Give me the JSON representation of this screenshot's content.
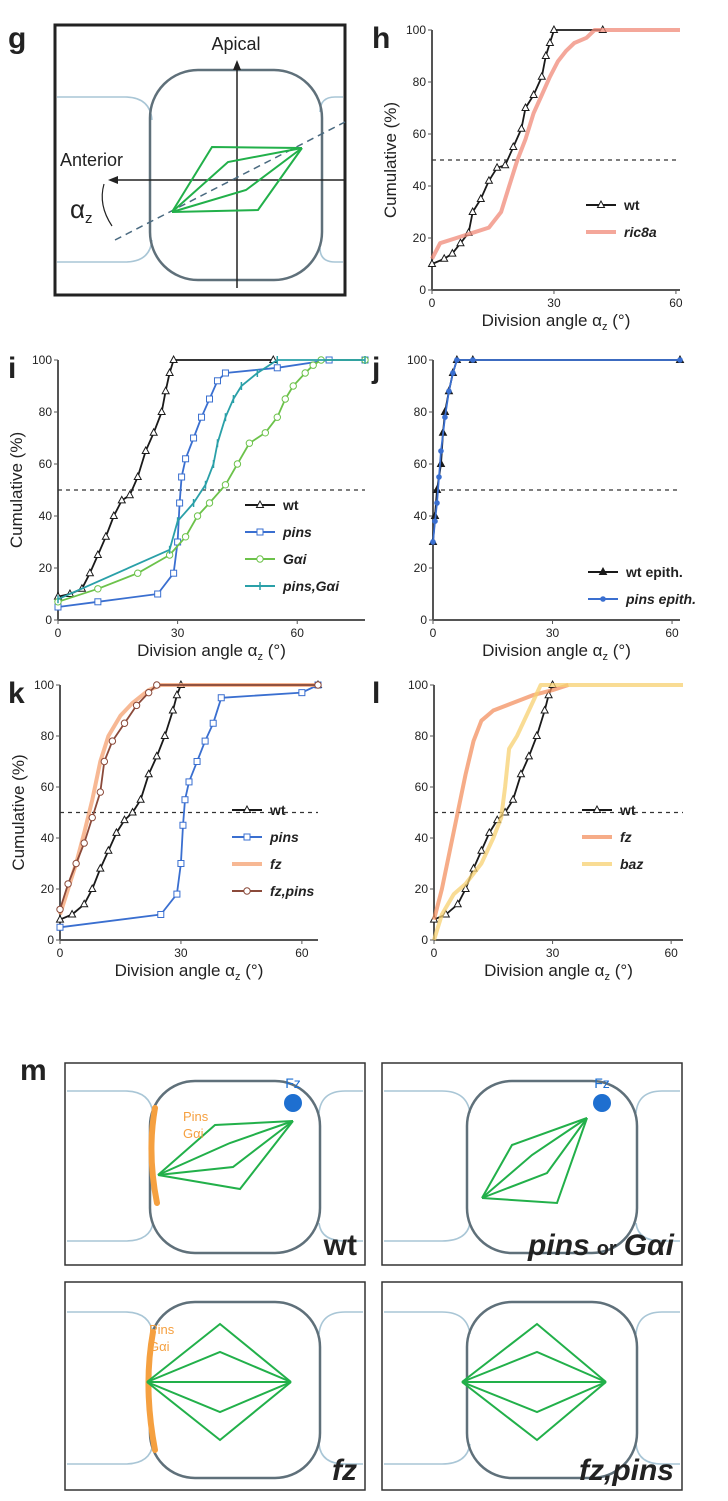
{
  "panel_g": {
    "label": "g",
    "apical": "Apical",
    "anterior": "Anterior",
    "angle": [
      "α",
      "z"
    ]
  },
  "chart_data": [
    {
      "type": "line",
      "panel_label": "h",
      "ylabel": "Cumulative (%)",
      "xlabel": [
        "Division angle α",
        "z",
        " (°)"
      ],
      "xlim": [
        0,
        61
      ],
      "ylim": [
        0,
        100
      ],
      "xticks": [
        0,
        30,
        60
      ],
      "yticks": [
        0,
        20,
        40,
        60,
        80,
        100
      ],
      "hline": 50,
      "series": [
        {
          "name": "wt",
          "color": "#1a1a1a",
          "marker": "triangle",
          "x": [
            0,
            3,
            5,
            7,
            9,
            10,
            12,
            14,
            16,
            18,
            20,
            22,
            23,
            25,
            27,
            28,
            29,
            30,
            42
          ],
          "values": [
            10,
            12,
            14,
            18,
            22,
            30,
            35,
            42,
            47,
            48,
            55,
            62,
            70,
            75,
            82,
            90,
            95,
            100,
            100
          ]
        },
        {
          "name": "ric8a",
          "color": "#f08a78",
          "marker": "none",
          "x": [
            0,
            2,
            6,
            10,
            14,
            17,
            19,
            21,
            23,
            25,
            27,
            29,
            31,
            33,
            35,
            38,
            40,
            61
          ],
          "values": [
            12,
            18,
            20,
            22,
            24,
            30,
            40,
            50,
            58,
            68,
            75,
            82,
            88,
            92,
            95,
            97,
            100,
            100
          ]
        }
      ]
    },
    {
      "type": "line",
      "panel_label": "i",
      "ylabel": "Cumulative (%)",
      "xlabel": [
        "Division angle α",
        "z",
        " (°)"
      ],
      "xlim": [
        0,
        77
      ],
      "ylim": [
        0,
        100
      ],
      "xticks": [
        0,
        30,
        60
      ],
      "yticks": [
        0,
        20,
        40,
        60,
        80,
        100
      ],
      "hline": 50,
      "series": [
        {
          "name": "wt",
          "color": "#1a1a1a",
          "marker": "triangle",
          "x": [
            0,
            3,
            6,
            8,
            10,
            12,
            14,
            16,
            18,
            20,
            22,
            24,
            26,
            27,
            28,
            29,
            54
          ],
          "values": [
            9,
            10,
            12,
            18,
            25,
            32,
            40,
            46,
            48,
            55,
            65,
            72,
            80,
            88,
            95,
            100,
            100
          ]
        },
        {
          "name": "pins",
          "color": "#3a6fd0",
          "marker": "square",
          "x": [
            0,
            10,
            25,
            29,
            30,
            30.5,
            31,
            32,
            34,
            36,
            38,
            40,
            42,
            55,
            68,
            77
          ],
          "values": [
            5,
            7,
            10,
            18,
            30,
            45,
            55,
            62,
            70,
            78,
            85,
            92,
            95,
            97,
            100,
            100
          ]
        },
        {
          "name": "Gαi",
          "color": "#6cc24a",
          "marker": "circle",
          "x": [
            0,
            10,
            20,
            28,
            32,
            35,
            38,
            42,
            45,
            48,
            52,
            55,
            57,
            59,
            62,
            64,
            66,
            77
          ],
          "values": [
            7,
            12,
            18,
            25,
            32,
            40,
            45,
            52,
            60,
            68,
            72,
            78,
            85,
            90,
            95,
            98,
            100,
            100
          ]
        },
        {
          "name": "pins,Gαi",
          "color": "#2aa0a8",
          "marker": "tick",
          "x": [
            0,
            28,
            30,
            34,
            37,
            39,
            40,
            42,
            44,
            46,
            50,
            55,
            77
          ],
          "values": [
            8,
            27,
            38,
            45,
            52,
            60,
            68,
            78,
            85,
            90,
            95,
            100,
            100
          ]
        }
      ]
    },
    {
      "type": "line",
      "panel_label": "j",
      "xlabel": [
        "Division angle α",
        "z",
        " (°)"
      ],
      "xlim": [
        0,
        62
      ],
      "ylim": [
        0,
        100
      ],
      "xticks": [
        0,
        30,
        60
      ],
      "yticks": [
        0,
        20,
        40,
        60,
        80,
        100
      ],
      "hline": 50,
      "series": [
        {
          "name": "wt epith.",
          "color": "#1a1a1a",
          "marker": "filled-triangle",
          "x": [
            0,
            0.5,
            1,
            2,
            2.5,
            3,
            4,
            5,
            6,
            10,
            62
          ],
          "values": [
            30,
            40,
            50,
            60,
            72,
            80,
            88,
            95,
            100,
            100,
            100
          ]
        },
        {
          "name": "pins epith.",
          "color": "#3a6fd0",
          "marker": "dot",
          "x": [
            0,
            0.5,
            1,
            1.5,
            2,
            3,
            4,
            5,
            6,
            10,
            62
          ],
          "values": [
            30,
            38,
            45,
            55,
            65,
            78,
            88,
            95,
            100,
            100,
            100
          ]
        }
      ]
    },
    {
      "type": "line",
      "panel_label": "k",
      "ylabel": "Cumulative (%)",
      "xlabel": [
        "Division angle α",
        "z",
        " (°)"
      ],
      "xlim": [
        0,
        64
      ],
      "ylim": [
        0,
        100
      ],
      "xticks": [
        0,
        30,
        60
      ],
      "yticks": [
        0,
        20,
        40,
        60,
        80,
        100
      ],
      "hline": 50,
      "series": [
        {
          "name": "wt",
          "color": "#1a1a1a",
          "marker": "triangle",
          "x": [
            0,
            3,
            6,
            8,
            10,
            12,
            14,
            16,
            18,
            20,
            22,
            24,
            26,
            28,
            29,
            30,
            64
          ],
          "values": [
            8,
            10,
            14,
            20,
            28,
            35,
            42,
            47,
            50,
            55,
            65,
            72,
            80,
            90,
            96,
            100,
            100
          ]
        },
        {
          "name": "pins",
          "color": "#3a6fd0",
          "marker": "square",
          "x": [
            0,
            25,
            29,
            30,
            30.5,
            31,
            32,
            34,
            36,
            38,
            40,
            60,
            64
          ],
          "values": [
            5,
            10,
            18,
            30,
            45,
            55,
            62,
            70,
            78,
            85,
            95,
            97,
            100
          ]
        },
        {
          "name": "fz",
          "color": "#f4a070",
          "marker": "none",
          "x": [
            0,
            2,
            4,
            6,
            8,
            10,
            12,
            15,
            18,
            22,
            25,
            64
          ],
          "values": [
            10,
            20,
            30,
            42,
            55,
            70,
            80,
            88,
            93,
            98,
            100,
            100
          ]
        },
        {
          "name": "fz,pins",
          "color": "#8b4a3a",
          "marker": "circle",
          "x": [
            0,
            2,
            4,
            6,
            8,
            10,
            11,
            13,
            16,
            19,
            22,
            24,
            64
          ],
          "values": [
            12,
            22,
            30,
            38,
            48,
            58,
            70,
            78,
            85,
            92,
            97,
            100,
            100
          ]
        }
      ]
    },
    {
      "type": "line",
      "panel_label": "l",
      "xlabel": [
        "Division angle α",
        "z",
        " (°)"
      ],
      "xlim": [
        0,
        63
      ],
      "ylim": [
        0,
        100
      ],
      "xticks": [
        0,
        30,
        60
      ],
      "yticks": [
        0,
        20,
        40,
        60,
        80,
        100
      ],
      "hline": 50,
      "series": [
        {
          "name": "wt",
          "color": "#1a1a1a",
          "marker": "triangle",
          "x": [
            0,
            3,
            6,
            8,
            10,
            12,
            14,
            16,
            18,
            20,
            22,
            24,
            26,
            28,
            29,
            30
          ],
          "values": [
            8,
            10,
            14,
            20,
            28,
            35,
            42,
            47,
            50,
            55,
            65,
            72,
            80,
            90,
            96,
            100
          ]
        },
        {
          "name": "fz",
          "color": "#f39060",
          "marker": "none",
          "x": [
            0,
            2,
            4,
            6,
            8,
            10,
            12,
            15,
            20,
            25,
            30,
            34
          ],
          "values": [
            8,
            20,
            35,
            50,
            65,
            78,
            86,
            90,
            93,
            96,
            98,
            100
          ]
        },
        {
          "name": "baz",
          "color": "#f7d070",
          "marker": "none",
          "x": [
            0,
            2,
            5,
            8,
            12,
            15,
            17,
            18,
            19,
            21,
            24,
            27,
            63
          ],
          "values": [
            0,
            10,
            18,
            22,
            30,
            40,
            48,
            60,
            75,
            80,
            90,
            100,
            100
          ]
        }
      ]
    }
  ],
  "panel_m": {
    "label": "m",
    "boxes": [
      {
        "markers": [
          "Fz"
        ],
        "cortex": [
          "Pins",
          "Gαi"
        ],
        "genotype": [
          "wt"
        ]
      },
      {
        "markers": [
          "Fz"
        ],
        "genotype": [
          "pins",
          "or",
          "Gαi"
        ]
      },
      {
        "cortex": [
          "Pins",
          "Gαi"
        ],
        "genotype": [
          "fz"
        ]
      },
      {
        "genotype": [
          "fz,pins"
        ]
      }
    ]
  }
}
